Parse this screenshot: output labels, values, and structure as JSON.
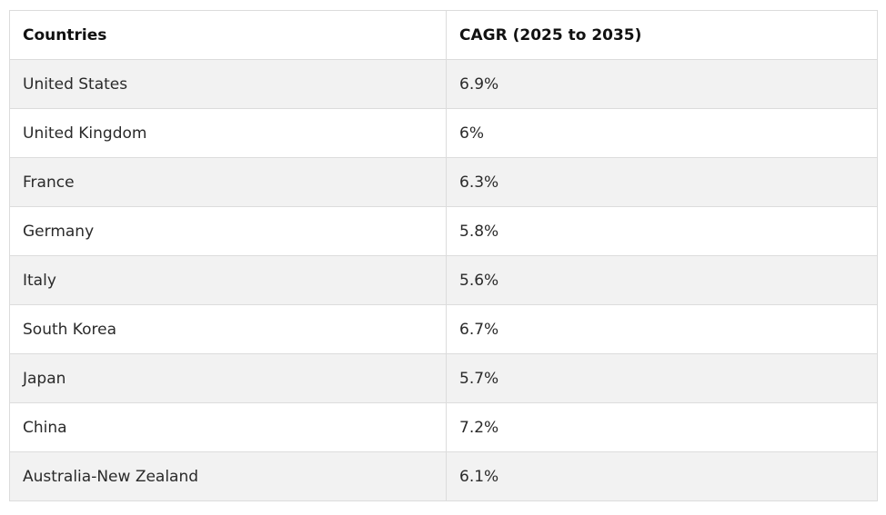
{
  "table": {
    "headers": [
      "Countries",
      "CAGR (2025 to 2035)"
    ],
    "rows": [
      [
        "United States",
        "6.9%"
      ],
      [
        "United Kingdom",
        "6%"
      ],
      [
        "France",
        "6.3%"
      ],
      [
        "Germany",
        "5.8%"
      ],
      [
        "Italy",
        "5.6%"
      ],
      [
        "South Korea",
        "6.7%"
      ],
      [
        "Japan",
        "5.7%"
      ],
      [
        "China",
        "7.2%"
      ],
      [
        "Australia-New Zealand",
        "6.1%"
      ]
    ]
  },
  "colors": {
    "row_shade": "#f2f2f2",
    "row_plain": "#ffffff",
    "border": "#dcdcdc"
  }
}
